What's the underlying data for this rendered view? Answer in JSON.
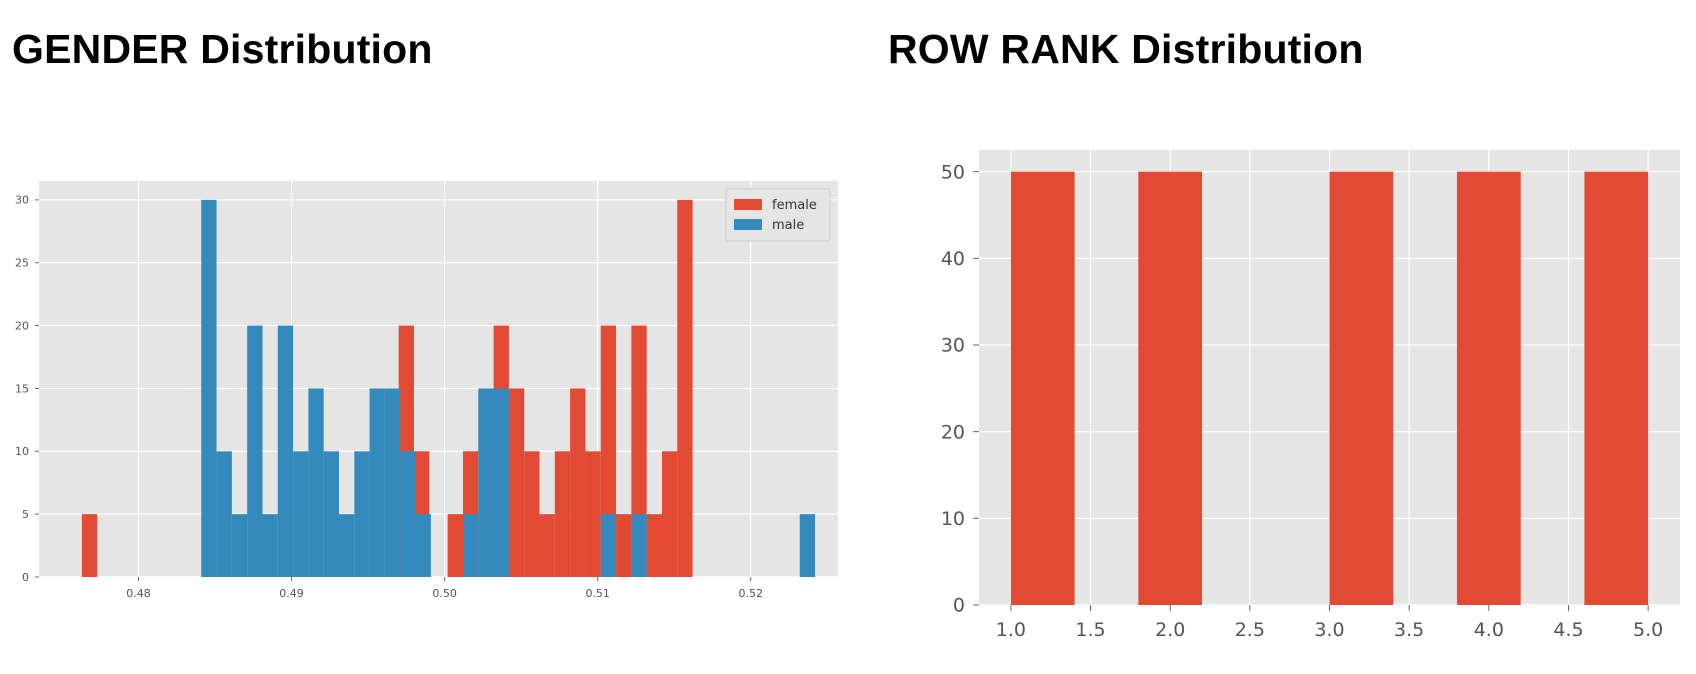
{
  "panels": {
    "gender_title": "GENDER Distribution",
    "row_rank_title": "ROW RANK Distribution"
  },
  "colors": {
    "female": "#e24a33",
    "male": "#348abd",
    "plot_bg": "#e5e5e5",
    "grid": "#ffffff",
    "tick_text": "#555555"
  },
  "chart_data": [
    {
      "type": "bar",
      "title": "",
      "xlabel": "",
      "ylabel": "",
      "xlim": [
        0.4735,
        0.5257
      ],
      "ylim": [
        0,
        31.5
      ],
      "xticks": [
        "0.48",
        "0.49",
        "0.50",
        "0.51",
        "0.52"
      ],
      "yticks": [
        "0",
        "5",
        "10",
        "15",
        "20",
        "25",
        "30"
      ],
      "grid": true,
      "legend": "top-right",
      "series": [
        {
          "name": "female",
          "color": "#e24a33",
          "bins": [
            [
              0.4763,
              0.4773,
              5
            ],
            [
              0.497,
              0.498,
              20
            ],
            [
              0.498,
              0.499,
              10
            ],
            [
              0.5002,
              0.5012,
              5
            ],
            [
              0.5012,
              0.5022,
              10
            ],
            [
              0.5032,
              0.5042,
              20
            ],
            [
              0.5042,
              0.5052,
              15
            ],
            [
              0.5052,
              0.5062,
              10
            ],
            [
              0.5062,
              0.5072,
              5
            ],
            [
              0.5072,
              0.5082,
              10
            ],
            [
              0.5082,
              0.5092,
              15
            ],
            [
              0.5092,
              0.5102,
              10
            ],
            [
              0.5102,
              0.5112,
              20
            ],
            [
              0.5112,
              0.5122,
              5
            ],
            [
              0.5122,
              0.5132,
              20
            ],
            [
              0.5132,
              0.5142,
              5
            ],
            [
              0.5142,
              0.5152,
              10
            ],
            [
              0.5152,
              0.5162,
              30
            ]
          ]
        },
        {
          "name": "male",
          "color": "#348abd",
          "bins": [
            [
              0.4841,
              0.4851,
              30
            ],
            [
              0.4851,
              0.4861,
              10
            ],
            [
              0.4861,
              0.4871,
              5
            ],
            [
              0.4871,
              0.4881,
              20
            ],
            [
              0.4881,
              0.4891,
              5
            ],
            [
              0.4891,
              0.4901,
              20
            ],
            [
              0.4901,
              0.4911,
              10
            ],
            [
              0.4911,
              0.4921,
              15
            ],
            [
              0.4921,
              0.4931,
              10
            ],
            [
              0.4931,
              0.4941,
              5
            ],
            [
              0.4941,
              0.4951,
              10
            ],
            [
              0.4951,
              0.4961,
              15
            ],
            [
              0.4961,
              0.4971,
              15
            ],
            [
              0.4971,
              0.4981,
              10
            ],
            [
              0.4981,
              0.4991,
              5
            ],
            [
              0.5012,
              0.5022,
              5
            ],
            [
              0.5022,
              0.5032,
              15
            ],
            [
              0.5032,
              0.5042,
              15
            ],
            [
              0.5102,
              0.5112,
              5
            ],
            [
              0.5122,
              0.5132,
              5
            ],
            [
              0.5232,
              0.5242,
              5
            ]
          ]
        }
      ]
    },
    {
      "type": "bar",
      "title": "",
      "xlabel": "",
      "ylabel": "",
      "xlim": [
        0.8,
        5.2
      ],
      "ylim": [
        0,
        52.5
      ],
      "xticks": [
        "1.0",
        "1.5",
        "2.0",
        "2.5",
        "3.0",
        "3.5",
        "4.0",
        "4.5",
        "5.0"
      ],
      "yticks": [
        "0",
        "10",
        "20",
        "30",
        "40",
        "50"
      ],
      "grid": true,
      "legend": "none",
      "series": [
        {
          "color": "#e24a33",
          "bins": [
            [
              1.0,
              1.4,
              50
            ],
            [
              1.8,
              2.2,
              50
            ],
            [
              3.0,
              3.4,
              50
            ],
            [
              3.8,
              4.2,
              50
            ],
            [
              4.6,
              5.0,
              50
            ]
          ]
        }
      ]
    }
  ]
}
